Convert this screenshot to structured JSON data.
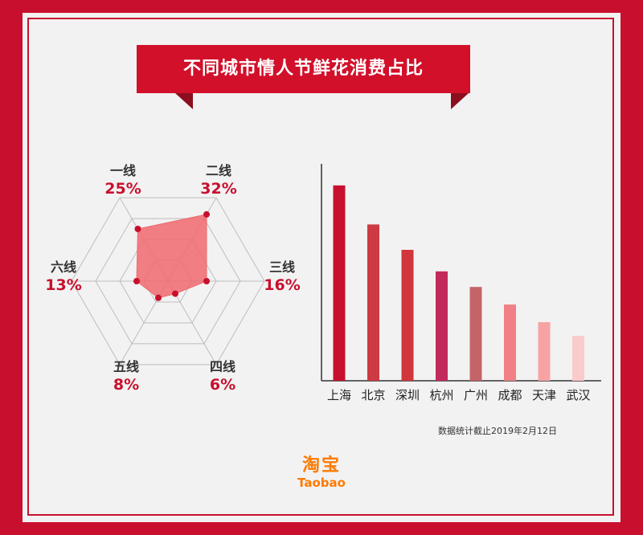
{
  "header": {
    "title": "不同城市情人节鲜花消费占比"
  },
  "chart_data": [
    {
      "type": "radar",
      "axes": [
        {
          "name": "一线",
          "pct_label": "25%",
          "value": 25
        },
        {
          "name": "二线",
          "pct_label": "32%",
          "value": 32
        },
        {
          "name": "三线",
          "pct_label": "16%",
          "value": 16
        },
        {
          "name": "四线",
          "pct_label": "6%",
          "value": 6
        },
        {
          "name": "五线",
          "pct_label": "8%",
          "value": 8
        },
        {
          "name": "六线",
          "pct_label": "13%",
          "value": 13
        }
      ],
      "max": 40,
      "rings": 4,
      "fill_color": "#f06a70",
      "point_color": "#c8102e"
    },
    {
      "type": "bar",
      "categories": [
        "上海",
        "北京",
        "深圳",
        "杭州",
        "广州",
        "成都",
        "天津",
        "武汉"
      ],
      "values": [
        100,
        80,
        67,
        56,
        48,
        39,
        30,
        23
      ],
      "ylim": [
        0,
        111
      ],
      "colors": [
        "#c8102e",
        "#cc3a42",
        "#d0363c",
        "#c22a5c",
        "#c56468",
        "#f08086",
        "#f7a3a4",
        "#fbcaca"
      ]
    }
  ],
  "footnote": "数据统计截止2019年2月12日",
  "logo": {
    "cn": "淘宝",
    "en": "Taobao"
  }
}
